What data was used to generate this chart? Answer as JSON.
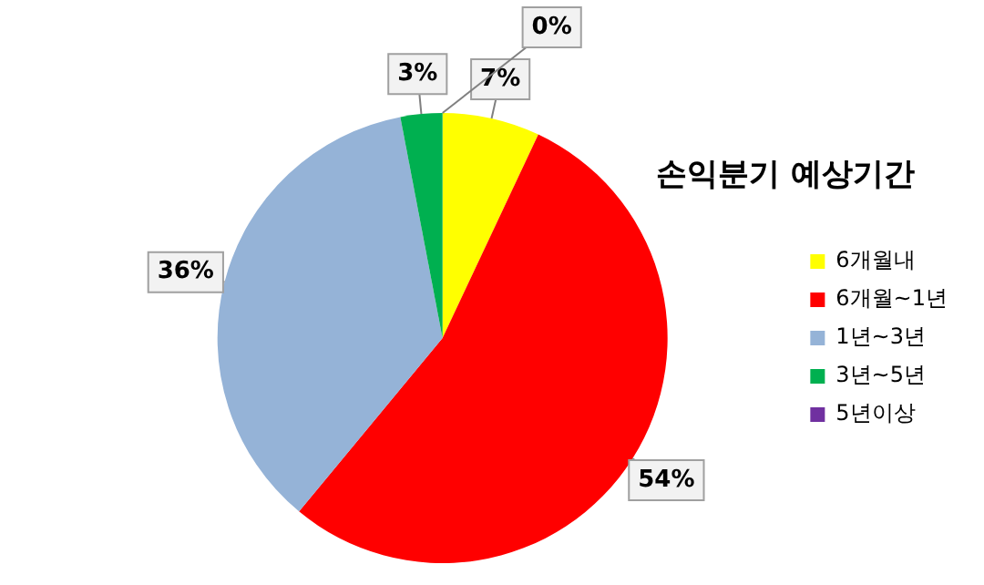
{
  "chart_data": {
    "type": "pie",
    "title": "손익분기 예상기간",
    "categories": [
      "6개월내",
      "6개월~1년",
      "1년~3년",
      "3년~5년",
      "5년이상"
    ],
    "values": [
      7,
      54,
      36,
      3,
      0
    ],
    "colors": [
      "#ffff00",
      "#ff0000",
      "#95b3d7",
      "#00b050",
      "#7030a0"
    ],
    "value_labels": [
      "7%",
      "54%",
      "36%",
      "3%",
      "0%"
    ],
    "legend": "right"
  }
}
